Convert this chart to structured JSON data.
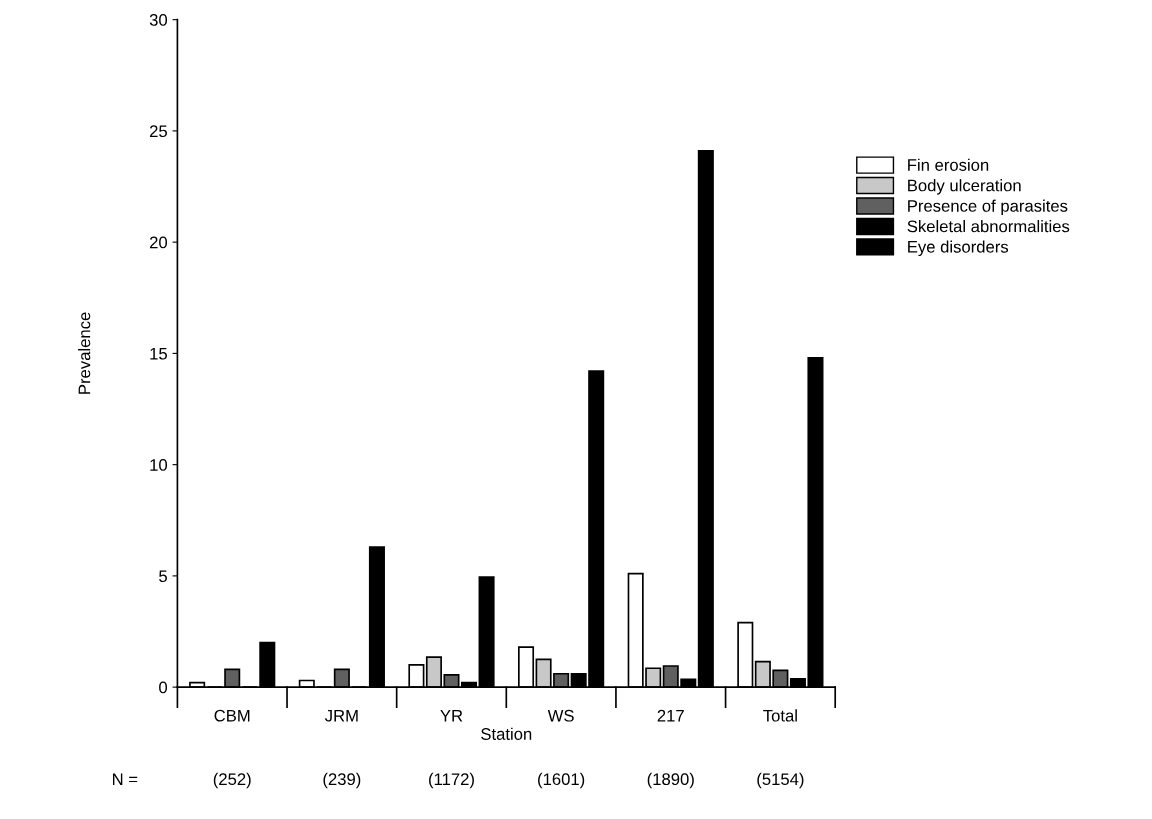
{
  "chart_data": {
    "type": "bar",
    "xlabel": "Station",
    "ylabel": "Prevalence",
    "categories": [
      "CBM",
      "JRM",
      "YR",
      "WS",
      "217",
      "Total"
    ],
    "series": [
      {
        "name": "Fin erosion",
        "color": "#ffffff",
        "values": [
          0.2,
          0.3,
          1.0,
          1.8,
          5.1,
          2.9
        ]
      },
      {
        "name": "Body ulceration",
        "color": "#c8c8c8",
        "values": [
          0,
          0,
          1.35,
          1.25,
          0.85,
          1.15
        ]
      },
      {
        "name": "Presence of parasites",
        "color": "#606060",
        "values": [
          0.8,
          0.8,
          0.55,
          0.6,
          0.95,
          0.75
        ]
      },
      {
        "name": "Skeletal abnormalities",
        "color": "#000000",
        "values": [
          0,
          0,
          0.2,
          0.6,
          0.35,
          0.37
        ]
      },
      {
        "name": "Eye disorders",
        "color": "#000000",
        "values": [
          2.0,
          6.3,
          4.95,
          14.2,
          24.1,
          14.8
        ]
      }
    ],
    "ylim": [
      0,
      30
    ],
    "yticks": [
      0,
      5,
      10,
      15,
      20,
      25,
      30
    ],
    "legend": "right",
    "grid": false,
    "annotations": [
      "N =",
      "(252)",
      "(239)",
      "(1172)",
      "(1601)",
      "(1890)",
      "(5154)"
    ]
  }
}
